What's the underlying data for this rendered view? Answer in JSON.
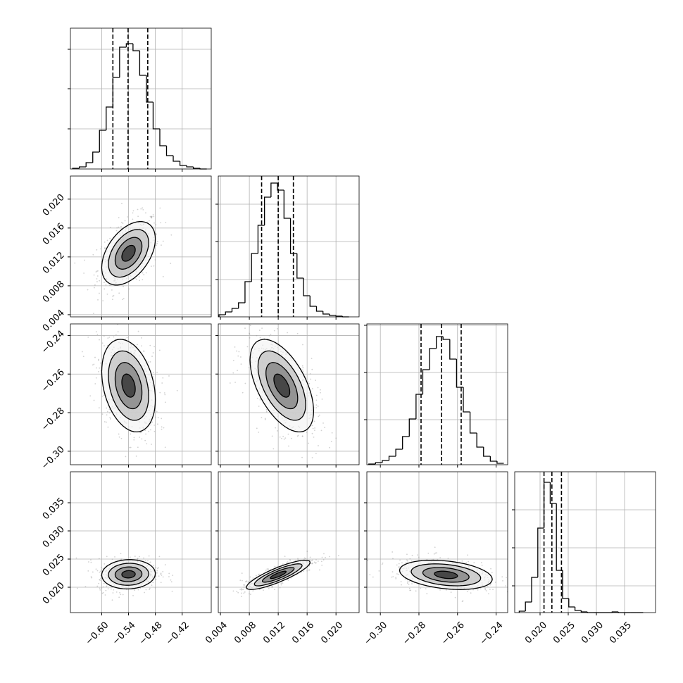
{
  "chart_data": {
    "type": "corner",
    "grid": true,
    "levels": [
      0.5,
      1,
      1.5,
      2
    ],
    "params": [
      {
        "lim": [
          -0.67,
          -0.355
        ],
        "ticks": [
          {
            "value": -0.6,
            "label": "−0.60"
          },
          {
            "value": -0.54,
            "label": "−0.54"
          },
          {
            "value": -0.48,
            "label": "−0.48"
          },
          {
            "value": -0.42,
            "label": "−0.42"
          }
        ],
        "bins": [
          -0.665,
          -0.65,
          -0.635,
          -0.62,
          -0.605,
          -0.59,
          -0.575,
          -0.56,
          -0.545,
          -0.53,
          -0.515,
          -0.5,
          -0.485,
          -0.47,
          -0.455,
          -0.44,
          -0.425,
          -0.41,
          -0.395,
          -0.38,
          -0.365
        ],
        "counts": [
          1,
          3,
          9,
          24,
          55,
          88,
          130,
          173,
          178,
          168,
          133,
          95,
          57,
          33,
          19,
          11,
          5,
          3,
          1,
          0
        ],
        "hist_ylim": [
          0,
          200
        ],
        "hist_yticks": [
          57,
          114,
          170
        ],
        "quantiles": [
          -0.575,
          -0.541,
          -0.497
        ]
      },
      {
        "lim": [
          0.0037,
          0.0232
        ],
        "ticks": [
          {
            "value": 0.004,
            "label": "0.004"
          },
          {
            "value": 0.008,
            "label": "0.008"
          },
          {
            "value": 0.012,
            "label": "0.012"
          },
          {
            "value": 0.016,
            "label": "0.016"
          },
          {
            "value": 0.02,
            "label": "0.020"
          }
        ],
        "bins": [
          0.0038,
          0.0047,
          0.0056,
          0.0065,
          0.0074,
          0.0083,
          0.0092,
          0.0101,
          0.011,
          0.0119,
          0.0128,
          0.0137,
          0.0146,
          0.0155,
          0.0164,
          0.0173,
          0.0182,
          0.0191,
          0.02,
          0.0209,
          0.0218
        ],
        "counts": [
          3,
          7,
          12,
          20,
          50,
          90,
          130,
          170,
          190,
          180,
          140,
          90,
          55,
          30,
          15,
          8,
          4,
          2,
          1,
          0
        ],
        "hist_ylim": [
          0,
          200
        ],
        "hist_yticks": [
          53,
          107,
          160
        ],
        "quantiles": [
          0.0097,
          0.012,
          0.0141
        ]
      },
      {
        "lim": [
          -0.307,
          -0.234
        ],
        "ticks": [
          {
            "value": -0.3,
            "label": "−0.30"
          },
          {
            "value": -0.28,
            "label": "−0.28"
          },
          {
            "value": -0.26,
            "label": "−0.26"
          },
          {
            "value": -0.24,
            "label": "−0.24"
          }
        ],
        "bins": [
          -0.306,
          -0.3025,
          -0.299,
          -0.2955,
          -0.292,
          -0.2885,
          -0.285,
          -0.2815,
          -0.278,
          -0.2745,
          -0.271,
          -0.2675,
          -0.264,
          -0.2605,
          -0.257,
          -0.2535,
          -0.25,
          -0.2465,
          -0.243,
          -0.2395,
          -0.236
        ],
        "counts": [
          1,
          3,
          6,
          12,
          22,
          40,
          65,
          100,
          135,
          165,
          182,
          178,
          150,
          110,
          75,
          45,
          25,
          12,
          5,
          2
        ],
        "hist_ylim": [
          0,
          200
        ],
        "hist_yticks": [
          64,
          131,
          198
        ],
        "quantiles": [
          -0.2789,
          -0.2683,
          -0.2581
        ]
      },
      {
        "lim": [
          0.0155,
          0.0405
        ],
        "ticks": [
          {
            "value": 0.02,
            "label": "0.020"
          },
          {
            "value": 0.025,
            "label": "0.025"
          },
          {
            "value": 0.03,
            "label": "0.030"
          },
          {
            "value": 0.035,
            "label": "0.035"
          }
        ],
        "bins": [
          0.0163,
          0.0174,
          0.0185,
          0.0196,
          0.0207,
          0.0218,
          0.0229,
          0.024,
          0.0251,
          0.0262,
          0.0273,
          0.0284,
          0.0295,
          0.0306,
          0.0317,
          0.0328,
          0.0339,
          0.035,
          0.0361,
          0.0372,
          0.0383
        ],
        "counts": [
          2,
          15,
          50,
          120,
          185,
          155,
          60,
          20,
          8,
          3,
          1,
          0,
          0,
          0,
          0,
          1,
          0,
          0,
          0,
          0
        ],
        "hist_ylim": [
          0,
          200
        ],
        "hist_yticks": [
          38,
          92,
          146
        ],
        "quantiles": [
          0.0207,
          0.0221,
          0.0238
        ]
      }
    ],
    "pairs": [
      {
        "x": 0,
        "y": 1,
        "center": [
          -0.54,
          0.0125
        ],
        "sd": [
          0.03,
          0.0022
        ],
        "corr": 0.45
      },
      {
        "x": 0,
        "y": 2,
        "center": [
          -0.54,
          -0.266
        ],
        "sd": [
          0.03,
          0.012
        ],
        "corr": -0.3
      },
      {
        "x": 1,
        "y": 2,
        "center": [
          0.0125,
          -0.266
        ],
        "sd": [
          0.0022,
          0.012
        ],
        "corr": -0.55
      },
      {
        "x": 0,
        "y": 3,
        "center": [
          -0.54,
          0.0223
        ],
        "sd": [
          0.03,
          0.0013
        ],
        "corr": 0.05
      },
      {
        "x": 1,
        "y": 3,
        "center": [
          0.012,
          0.0222
        ],
        "sd": [
          0.0022,
          0.0013
        ],
        "corr": 0.85
      },
      {
        "x": 2,
        "y": 3,
        "center": [
          -0.266,
          0.0222
        ],
        "sd": [
          0.012,
          0.0013
        ],
        "corr": -0.3
      }
    ]
  }
}
